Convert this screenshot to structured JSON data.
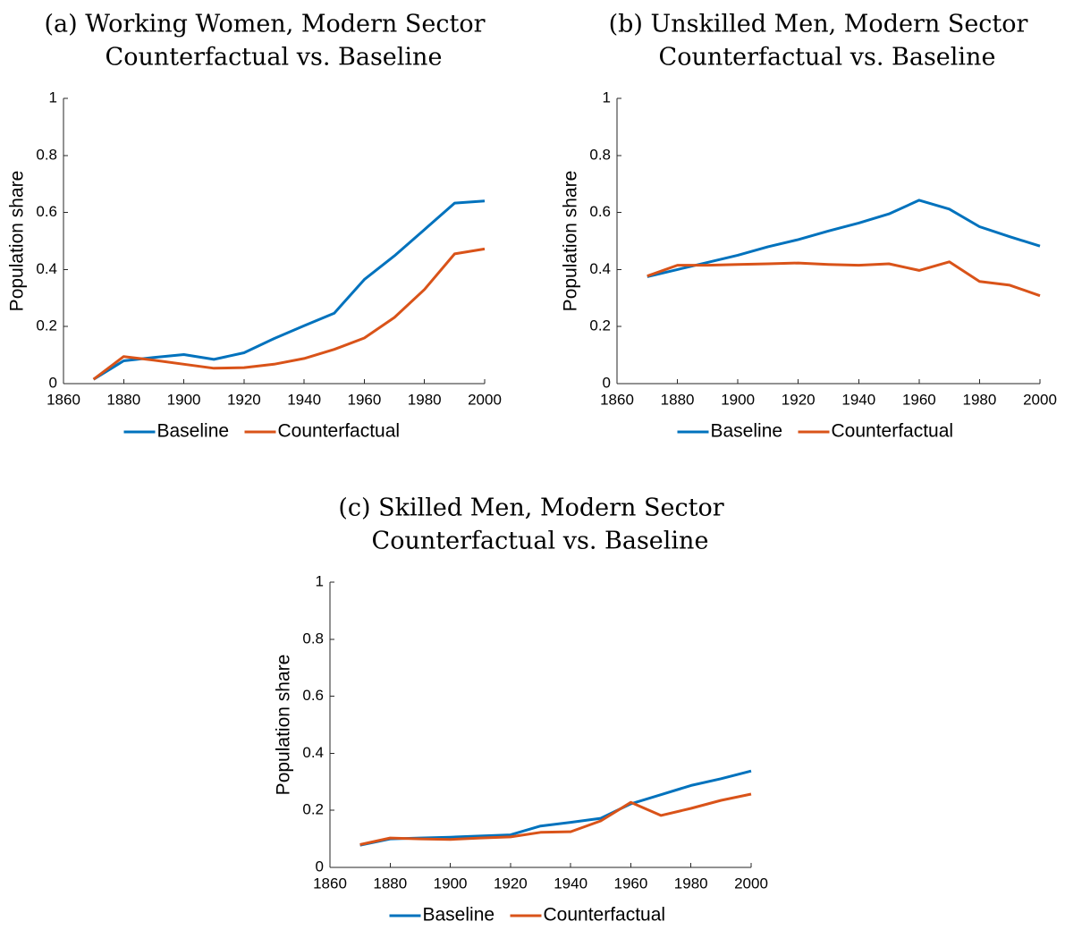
{
  "colors": {
    "baseline": "#0072BD",
    "counterfactual": "#D95319",
    "axis": "#262626"
  },
  "chart_data": [
    {
      "type": "line",
      "title": "(a) Working Women, Modern Sector",
      "subtitle": "Counterfactual vs. Baseline",
      "xlabel": "",
      "ylabel": "Population share",
      "xlim": [
        1860,
        2000
      ],
      "ylim": [
        0,
        1
      ],
      "xticks": [
        1860,
        1880,
        1900,
        1920,
        1940,
        1960,
        1980,
        2000
      ],
      "yticks": [
        0,
        0.2,
        0.4,
        0.6,
        0.8,
        1
      ],
      "ytick_labels": [
        "0",
        "0.2",
        "0.4",
        "0.6",
        "0.8",
        "1"
      ],
      "legend_position": "bottom",
      "x": [
        1870,
        1880,
        1890,
        1900,
        1910,
        1920,
        1930,
        1940,
        1950,
        1960,
        1970,
        1980,
        1990,
        2000
      ],
      "series": [
        {
          "name": "Baseline",
          "values": [
            0.015,
            0.08,
            0.092,
            0.102,
            0.085,
            0.108,
            0.158,
            0.203,
            0.247,
            0.365,
            0.448,
            0.54,
            0.633,
            0.64
          ]
        },
        {
          "name": "Counterfactual",
          "values": [
            0.015,
            0.095,
            0.082,
            0.068,
            0.054,
            0.056,
            0.068,
            0.088,
            0.12,
            0.16,
            0.232,
            0.33,
            0.455,
            0.472
          ]
        }
      ]
    },
    {
      "type": "line",
      "title": "(b) Unskilled Men, Modern Sector",
      "subtitle": "Counterfactual vs. Baseline",
      "xlabel": "",
      "ylabel": "Population share",
      "xlim": [
        1860,
        2000
      ],
      "ylim": [
        0,
        1
      ],
      "xticks": [
        1860,
        1880,
        1900,
        1920,
        1940,
        1960,
        1980,
        2000
      ],
      "yticks": [
        0,
        0.2,
        0.4,
        0.6,
        0.8,
        1
      ],
      "ytick_labels": [
        "0",
        "0.2",
        "0.4",
        "0.6",
        "0.8",
        "1"
      ],
      "legend_position": "bottom",
      "x": [
        1870,
        1880,
        1890,
        1900,
        1910,
        1920,
        1930,
        1940,
        1950,
        1960,
        1970,
        1980,
        1990,
        2000
      ],
      "series": [
        {
          "name": "Baseline",
          "values": [
            0.375,
            0.4,
            0.425,
            0.45,
            0.48,
            0.505,
            0.535,
            0.563,
            0.595,
            0.643,
            0.612,
            0.55,
            0.515,
            0.482
          ]
        },
        {
          "name": "Counterfactual",
          "values": [
            0.377,
            0.415,
            0.415,
            0.418,
            0.42,
            0.423,
            0.418,
            0.415,
            0.42,
            0.397,
            0.427,
            0.358,
            0.345,
            0.308
          ]
        }
      ]
    },
    {
      "type": "line",
      "title": "(c) Skilled Men, Modern Sector",
      "subtitle": "Counterfactual vs. Baseline",
      "xlabel": "",
      "ylabel": "Population share",
      "xlim": [
        1860,
        2000
      ],
      "ylim": [
        0,
        1
      ],
      "xticks": [
        1860,
        1880,
        1900,
        1920,
        1940,
        1960,
        1980,
        2000
      ],
      "yticks": [
        0,
        0.2,
        0.4,
        0.6,
        0.8,
        1
      ],
      "ytick_labels": [
        "0",
        "0.2",
        "0.4",
        "0.6",
        "0.8",
        "1"
      ],
      "legend_position": "bottom",
      "x": [
        1870,
        1880,
        1890,
        1900,
        1910,
        1920,
        1930,
        1940,
        1950,
        1960,
        1970,
        1980,
        1990,
        2000
      ],
      "series": [
        {
          "name": "Baseline",
          "values": [
            0.078,
            0.1,
            0.103,
            0.106,
            0.11,
            0.114,
            0.145,
            0.158,
            0.172,
            0.223,
            0.255,
            0.287,
            0.311,
            0.338
          ]
        },
        {
          "name": "Counterfactual",
          "values": [
            0.08,
            0.103,
            0.1,
            0.098,
            0.103,
            0.107,
            0.123,
            0.125,
            0.163,
            0.228,
            0.182,
            0.207,
            0.235,
            0.257
          ]
        }
      ]
    }
  ]
}
